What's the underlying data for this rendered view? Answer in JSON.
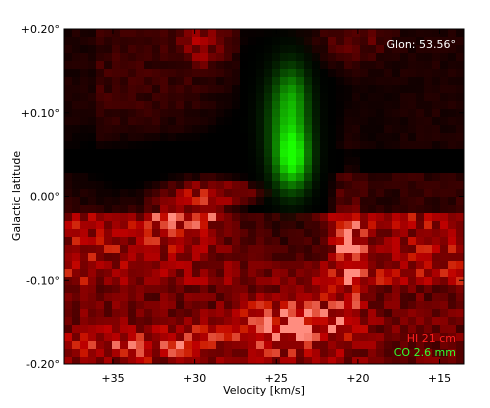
{
  "chart_data": {
    "type": "heatmap",
    "title": "",
    "xlabel": "Velocity [km/s]",
    "ylabel": "Galactic latitude",
    "xlim": [
      38,
      13.5
    ],
    "ylim": [
      -0.2,
      0.2
    ],
    "x_ticks": [
      {
        "value": 35,
        "label": "+35"
      },
      {
        "value": 30,
        "label": "+30"
      },
      {
        "value": 25,
        "label": "+25"
      },
      {
        "value": 20,
        "label": "+20"
      },
      {
        "value": 15,
        "label": "+15"
      }
    ],
    "y_ticks": [
      {
        "value": 0.2,
        "label": "+0.20°"
      },
      {
        "value": 0.1,
        "label": "+0.10°"
      },
      {
        "value": 0.0,
        "label": "0.00°"
      },
      {
        "value": -0.1,
        "label": "-0.10°"
      },
      {
        "value": -0.2,
        "label": "-0.20°"
      }
    ],
    "annotation": "Glon: 53.56°",
    "legend_placement": "bottom-right",
    "grid": false,
    "series": [
      {
        "name": "HI 21 cm",
        "color": "#ff2020",
        "channel": "red"
      },
      {
        "name": "CO 2.6 mm",
        "color": "#30ff30",
        "channel": "green"
      }
    ],
    "features": [
      {
        "series": "HI 21 cm",
        "description_value": "bright emission ridge",
        "velocity": [
          33,
          26
        ],
        "latitude": [
          -0.03,
          0.01
        ],
        "peak_velocity": 27.5,
        "peak_latitude": 0.005
      },
      {
        "series": "HI 21 cm",
        "description_value": "arc",
        "velocity": [
          25,
          19
        ],
        "latitude": [
          -0.17,
          0.08
        ]
      },
      {
        "series": "HI 21 cm",
        "description_value": "band",
        "velocity": [
          38,
          13.5
        ],
        "latitude": [
          -0.2,
          -0.13
        ]
      },
      {
        "series": "CO 2.6 mm",
        "description_value": "cloud",
        "velocity": [
          26,
          22.5
        ],
        "latitude": [
          0.01,
          0.15
        ],
        "peak_velocity": 24,
        "peak_latitude": 0.04
      }
    ]
  }
}
